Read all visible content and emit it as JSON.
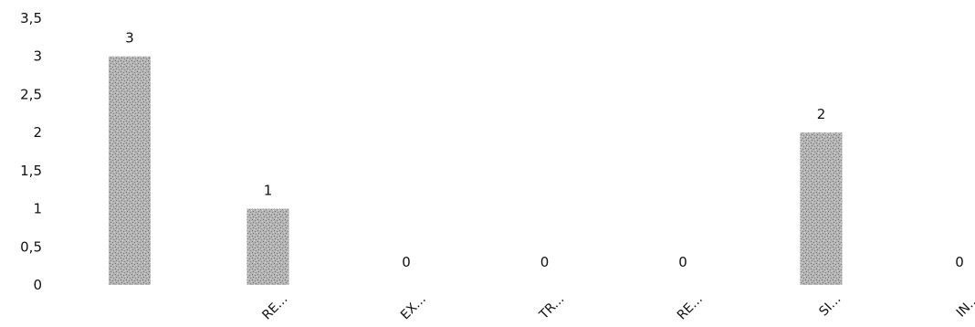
{
  "chart_data": {
    "type": "bar",
    "title": "",
    "xlabel": "",
    "ylabel": "",
    "categories": [
      "",
      "RE...",
      "EX...",
      "TR...",
      "RE...",
      "SI...",
      "IN..."
    ],
    "values": [
      3,
      1,
      0,
      0,
      0,
      2,
      0
    ],
    "data_labels": [
      "3",
      "1",
      "0",
      "0",
      "0",
      "2",
      "0"
    ],
    "ylim": [
      0,
      3.5
    ],
    "y_ticks": [
      "0",
      "0,5",
      "1",
      "1,5",
      "2",
      "2,5",
      "3",
      "3,5"
    ],
    "grid": false,
    "legend": "none",
    "bar_color": "#9a9a9a"
  }
}
